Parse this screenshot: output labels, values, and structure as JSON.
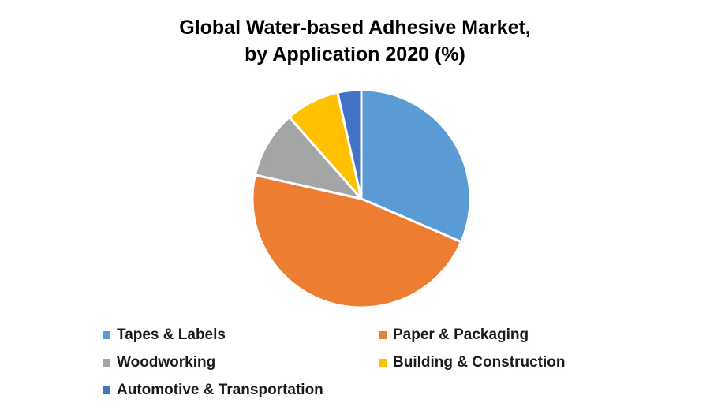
{
  "chart_data": {
    "type": "pie",
    "title": "Global Water-based Adhesive Market,",
    "subtitle": "by Application 2020 (%)",
    "legend": "bottom",
    "slices": [
      {
        "name": "Tapes & Labels",
        "value": 31.5,
        "color": "#5B9BD5"
      },
      {
        "name": "Paper & Packaging",
        "value": 47,
        "color": "#ED7D31"
      },
      {
        "name": "Woodworking",
        "value": 10,
        "color": "#A5A5A5"
      },
      {
        "name": "Building & Construction",
        "value": 8,
        "color": "#FFC000"
      },
      {
        "name": "Automotive & Transportation",
        "value": 3.5,
        "color": "#4472C4"
      }
    ]
  }
}
